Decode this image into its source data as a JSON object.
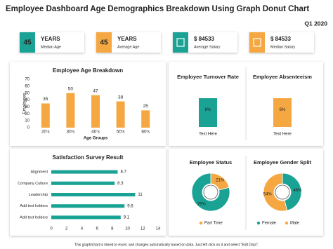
{
  "header": {
    "title": "Employee Dashboard Age Demographics Breakdown Using Graph Donut Chart",
    "period": "Q1 2020"
  },
  "kpis": [
    {
      "value": "45",
      "unit": "YEARS",
      "label": "Median Age",
      "color": "#1aa394"
    },
    {
      "value": "45",
      "unit": "YEARS",
      "label": "Average Age",
      "color": "#f5a742"
    },
    {
      "value": "$ 84533",
      "label": "Average Salary",
      "color": "#1aa394"
    },
    {
      "value": "$ 84533",
      "label": "Median Salary",
      "color": "#f5a742"
    }
  ],
  "chart_data": [
    {
      "type": "bar",
      "title": "Employee Age Breakdown",
      "x_label": "Age Groups",
      "y_label": "Employees",
      "categories": [
        "20's",
        "30's",
        "40's",
        "50's",
        "60's"
      ],
      "values": [
        35,
        50,
        47,
        38,
        25
      ],
      "color": "#f5a742",
      "ylim": [
        0,
        70
      ],
      "yticks": [
        0,
        10,
        20,
        30,
        40,
        50,
        60,
        70
      ]
    },
    {
      "type": "bar",
      "title": "Employee Turnover Rate",
      "categories": [
        "Text Here"
      ],
      "values": [
        8
      ],
      "value_labels": [
        "8%"
      ],
      "color": "#1aa394"
    },
    {
      "type": "bar",
      "title": "Employee Absenteeism",
      "categories": [
        "Text Here"
      ],
      "values": [
        6
      ],
      "value_labels": [
        "6%"
      ],
      "color": "#f5a742"
    },
    {
      "type": "barh",
      "title": "Satisfaction Survey Result",
      "categories": [
        "Alignment",
        "Company Culture",
        "Leadership",
        "Add text holders",
        "Add text holders"
      ],
      "values": [
        8.7,
        8.3,
        11,
        9.6,
        9.1
      ],
      "color": "#1aa394",
      "xlim": [
        0,
        14
      ],
      "xticks": [
        0,
        2,
        4,
        6,
        8,
        10,
        12,
        14
      ]
    },
    {
      "type": "donut",
      "title": "Employee Status",
      "categories": [
        null,
        "Part Time"
      ],
      "values": [
        79,
        21
      ],
      "value_labels": [
        "79%",
        "21%"
      ],
      "colors": [
        "#1aa394",
        "#f5a742"
      ]
    },
    {
      "type": "donut",
      "title": "Employee Gender Split",
      "categories": [
        "Female",
        "Male"
      ],
      "values": [
        46,
        54
      ],
      "value_labels": [
        "46%",
        "54%"
      ],
      "colors": [
        "#1aa394",
        "#f5a742"
      ]
    }
  ],
  "footer": "This graph/chart is linked to excel, and changes automatically based on data. Just left click on it and select \"Edit Data\"."
}
